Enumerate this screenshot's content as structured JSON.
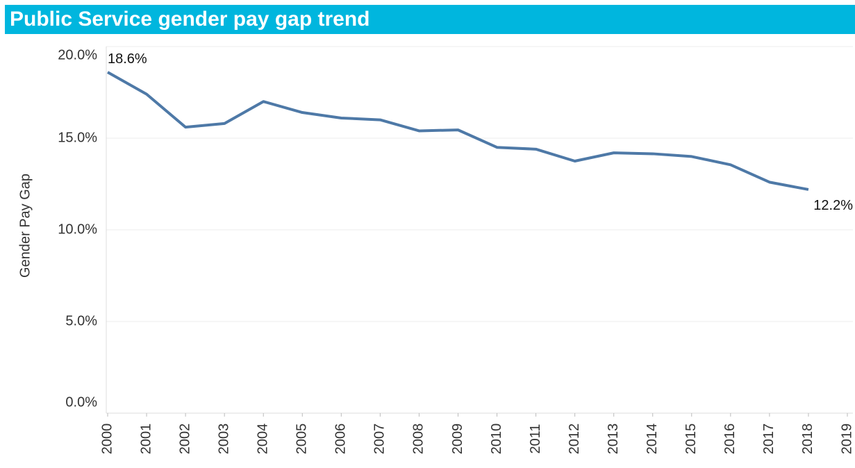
{
  "chart_data": {
    "type": "line",
    "title": "Public Service gender pay gap trend",
    "y_label": "Gender Pay Gap",
    "x": [
      2000,
      2001,
      2002,
      2003,
      2004,
      2005,
      2006,
      2007,
      2008,
      2009,
      2010,
      2011,
      2012,
      2013,
      2014,
      2015,
      2016,
      2017,
      2018
    ],
    "series": [
      {
        "name": "Gender Pay Gap",
        "color": "#4e79a7",
        "values": [
          18.6,
          17.4,
          15.6,
          15.8,
          17.0,
          16.4,
          16.1,
          16.0,
          15.4,
          15.45,
          14.5,
          14.4,
          13.75,
          14.2,
          14.15,
          14.0,
          13.55,
          12.6,
          12.2
        ]
      }
    ],
    "annotations": [
      {
        "x": 2000,
        "y": 18.6,
        "text": "18.6%"
      },
      {
        "x": 2018,
        "y": 12.2,
        "text": "12.2%"
      }
    ],
    "xlim": [
      2000,
      2019
    ],
    "xticks": [
      2000,
      2001,
      2002,
      2003,
      2004,
      2005,
      2006,
      2007,
      2008,
      2009,
      2010,
      2011,
      2012,
      2013,
      2014,
      2015,
      2016,
      2017,
      2018,
      2019
    ],
    "ylim": [
      0,
      20
    ],
    "yticks": [
      {
        "value": 0,
        "label": "0.0%"
      },
      {
        "value": 5,
        "label": "5.0%"
      },
      {
        "value": 10,
        "label": "10.0%"
      },
      {
        "value": 15,
        "label": "15.0%"
      },
      {
        "value": 20,
        "label": "20.0%"
      }
    ],
    "grid": true
  }
}
